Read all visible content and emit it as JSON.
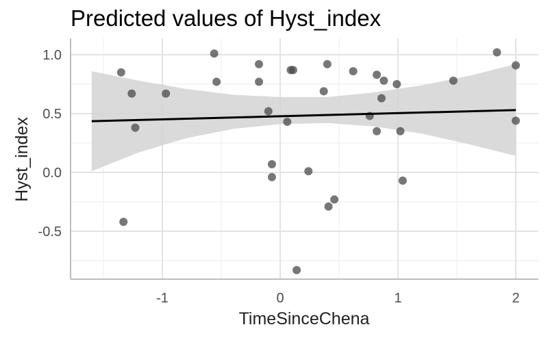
{
  "chart_data": {
    "type": "scatter",
    "title": "Predicted values of Hyst_index",
    "xlabel": "TimeSinceChena",
    "ylabel": "Hyst_index",
    "xlim": [
      -1.6,
      2.0
    ],
    "ylim": [
      -0.9,
      1.05
    ],
    "x_ticks": [
      -1,
      0,
      1,
      2
    ],
    "x_tick_labels": [
      "-1",
      "0",
      "1",
      "2"
    ],
    "y_ticks": [
      -0.5,
      0.0,
      0.5,
      1.0
    ],
    "y_tick_labels": [
      "-0.5",
      "0.0",
      "0.5",
      "1.0"
    ],
    "grid": true,
    "points": [
      {
        "x": -1.35,
        "y": 0.85
      },
      {
        "x": -1.26,
        "y": 0.67
      },
      {
        "x": -1.23,
        "y": 0.38
      },
      {
        "x": -1.33,
        "y": -0.42
      },
      {
        "x": -0.97,
        "y": 0.67
      },
      {
        "x": -0.56,
        "y": 1.01
      },
      {
        "x": -0.54,
        "y": 0.77
      },
      {
        "x": -0.18,
        "y": 0.92
      },
      {
        "x": -0.18,
        "y": 0.77
      },
      {
        "x": -0.1,
        "y": 0.52
      },
      {
        "x": -0.07,
        "y": 0.07
      },
      {
        "x": -0.07,
        "y": -0.04
      },
      {
        "x": 0.06,
        "y": 0.43
      },
      {
        "x": 0.09,
        "y": 0.87
      },
      {
        "x": 0.11,
        "y": 0.87
      },
      {
        "x": 0.14,
        "y": -0.83
      },
      {
        "x": 0.24,
        "y": 0.01
      },
      {
        "x": 0.37,
        "y": 0.69
      },
      {
        "x": 0.4,
        "y": 0.92
      },
      {
        "x": 0.41,
        "y": -0.29
      },
      {
        "x": 0.46,
        "y": -0.23
      },
      {
        "x": 0.62,
        "y": 0.86
      },
      {
        "x": 0.76,
        "y": 0.48
      },
      {
        "x": 0.82,
        "y": 0.83
      },
      {
        "x": 0.82,
        "y": 0.35
      },
      {
        "x": 0.86,
        "y": 0.63
      },
      {
        "x": 0.88,
        "y": 0.78
      },
      {
        "x": 0.99,
        "y": 0.75
      },
      {
        "x": 1.02,
        "y": 0.35
      },
      {
        "x": 1.04,
        "y": -0.07
      },
      {
        "x": 1.47,
        "y": 0.78
      },
      {
        "x": 1.84,
        "y": 1.02
      },
      {
        "x": 2.0,
        "y": 0.91
      },
      {
        "x": 2.0,
        "y": 0.44
      }
    ],
    "fit_line": {
      "x": [
        -1.6,
        2.0
      ],
      "y": [
        0.435,
        0.53
      ]
    },
    "confidence_band": {
      "x": [
        -1.6,
        -1.2,
        -0.8,
        -0.4,
        0.0,
        0.4,
        0.8,
        1.2,
        1.6,
        2.0
      ],
      "lower": [
        0.01,
        0.17,
        0.29,
        0.37,
        0.41,
        0.42,
        0.39,
        0.33,
        0.24,
        0.14
      ],
      "upper": [
        0.86,
        0.78,
        0.71,
        0.66,
        0.64,
        0.64,
        0.68,
        0.74,
        0.82,
        0.92
      ]
    },
    "colors": {
      "points": "#4a4a4a",
      "fit_line": "#000000",
      "band": "#d3d3d3",
      "grid_major": "#e3e3e3",
      "grid_minor": "#efefef",
      "axis": "#bdbdbd"
    }
  }
}
